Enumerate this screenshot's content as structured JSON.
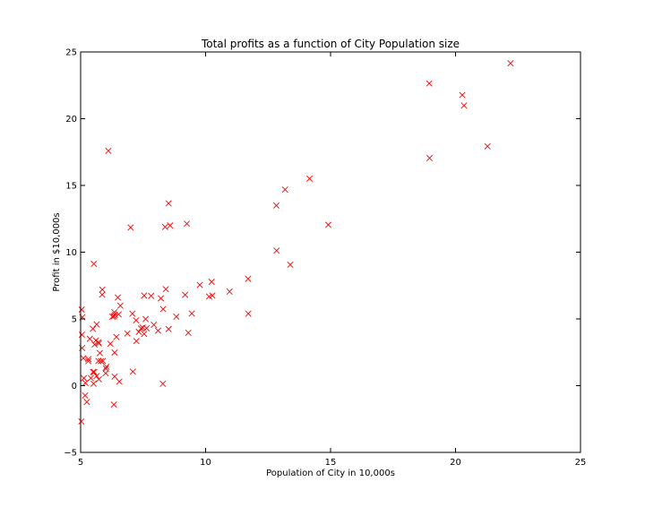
{
  "chart_data": {
    "type": "scatter",
    "title": "Total profits as a function of City Population size",
    "xlabel": "Population of City in 10,000s",
    "ylabel": "Profit in $10,000s",
    "xlim": [
      5,
      25
    ],
    "ylim": [
      -5,
      25
    ],
    "xticks": [
      "5",
      "10",
      "15",
      "20",
      "25"
    ],
    "yticks": [
      "−5",
      "0",
      "5",
      "10",
      "15",
      "20",
      "25"
    ],
    "grid": false,
    "marker": "x",
    "marker_color": "#ff0000",
    "points": [
      [
        6.11,
        17.59
      ],
      [
        5.53,
        9.13
      ],
      [
        8.52,
        13.66
      ],
      [
        7.0,
        11.85
      ],
      [
        5.86,
        6.82
      ],
      [
        8.38,
        11.89
      ],
      [
        7.48,
        4.35
      ],
      [
        8.58,
        12.0
      ],
      [
        6.49,
        6.6
      ],
      [
        5.05,
        3.82
      ],
      [
        5.71,
        3.25
      ],
      [
        14.16,
        15.51
      ],
      [
        5.73,
        3.16
      ],
      [
        8.41,
        7.23
      ],
      [
        5.64,
        0.72
      ],
      [
        5.37,
        3.51
      ],
      [
        6.37,
        5.3
      ],
      [
        5.13,
        0.56
      ],
      [
        6.43,
        3.65
      ],
      [
        7.07,
        5.39
      ],
      [
        6.19,
        3.14
      ],
      [
        20.27,
        21.77
      ],
      [
        5.49,
        4.26
      ],
      [
        6.33,
        5.19
      ],
      [
        5.56,
        3.08
      ],
      [
        18.95,
        22.64
      ],
      [
        12.83,
        13.5
      ],
      [
        10.96,
        7.05
      ],
      [
        13.18,
        14.69
      ],
      [
        22.2,
        24.15
      ],
      [
        5.25,
        -1.22
      ],
      [
        6.59,
        5.99
      ],
      [
        9.25,
        12.13
      ],
      [
        5.89,
        1.85
      ],
      [
        8.21,
        6.54
      ],
      [
        7.93,
        4.56
      ],
      [
        8.1,
        4.12
      ],
      [
        5.61,
        3.39
      ],
      [
        12.84,
        10.12
      ],
      [
        6.35,
        5.5
      ],
      [
        5.41,
        0.56
      ],
      [
        6.87,
        3.91
      ],
      [
        11.71,
        5.39
      ],
      [
        5.77,
        2.44
      ],
      [
        7.82,
        6.73
      ],
      [
        7.09,
        1.05
      ],
      [
        5.07,
        5.13
      ],
      [
        5.81,
        1.84
      ],
      [
        11.7,
        8.0
      ],
      [
        5.54,
        1.02
      ],
      [
        7.54,
        6.75
      ],
      [
        5.31,
        1.84
      ],
      [
        7.42,
        4.29
      ],
      [
        7.6,
        4.99
      ],
      [
        6.03,
        1.42
      ],
      [
        6.33,
        -1.42
      ],
      [
        6.36,
        2.48
      ],
      [
        6.27,
        5.17
      ],
      [
        5.64,
        4.59
      ],
      [
        9.31,
        3.96
      ],
      [
        9.45,
        5.41
      ],
      [
        8.83,
        5.17
      ],
      [
        5.18,
        -0.74
      ],
      [
        21.28,
        17.93
      ],
      [
        14.91,
        12.05
      ],
      [
        18.96,
        17.05
      ],
      [
        7.22,
        4.89
      ],
      [
        8.3,
        5.74
      ],
      [
        10.24,
        7.78
      ],
      [
        5.5,
        1.02
      ],
      [
        20.34,
        20.99
      ],
      [
        10.14,
        6.68
      ],
      [
        7.33,
        4.03
      ],
      [
        6.01,
        1.28
      ],
      [
        7.23,
        3.34
      ],
      [
        5.03,
        -2.68
      ],
      [
        6.55,
        0.3
      ],
      [
        7.54,
        3.88
      ],
      [
        5.04,
        5.7
      ],
      [
        10.27,
        6.75
      ],
      [
        5.11,
        2.06
      ],
      [
        5.73,
        0.48
      ],
      [
        5.19,
        0.2
      ],
      [
        6.36,
        0.68
      ],
      [
        9.77,
        7.54
      ],
      [
        6.52,
        5.34
      ],
      [
        8.52,
        4.24
      ],
      [
        9.18,
        6.8
      ],
      [
        6.0,
        0.93
      ],
      [
        5.52,
        0.15
      ],
      [
        5.06,
        2.82
      ],
      [
        5.71,
        1.85
      ],
      [
        7.64,
        4.3
      ],
      [
        5.87,
        7.2
      ],
      [
        5.31,
        1.99
      ],
      [
        8.29,
        0.14
      ],
      [
        13.39,
        9.06
      ]
    ]
  }
}
